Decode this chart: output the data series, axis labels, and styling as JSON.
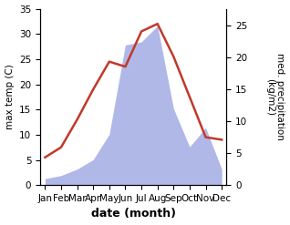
{
  "months": [
    "Jan",
    "Feb",
    "Mar",
    "Apr",
    "May",
    "Jun",
    "Jul",
    "Aug",
    "Sep",
    "Oct",
    "Nov",
    "Dec"
  ],
  "month_positions": [
    0,
    1,
    2,
    3,
    4,
    5,
    6,
    7,
    8,
    9,
    10,
    11
  ],
  "temperature": [
    5.5,
    7.5,
    13.0,
    19.0,
    24.5,
    23.5,
    30.5,
    32.0,
    25.5,
    17.5,
    9.5,
    9.0
  ],
  "precipitation": [
    1.0,
    1.5,
    2.5,
    4.0,
    8.0,
    22.0,
    22.5,
    25.0,
    12.0,
    6.0,
    9.0,
    2.5
  ],
  "temp_color": "#c0392b",
  "precip_color": "#b0b8e8",
  "ylim_temp": [
    0,
    35
  ],
  "ylim_precip": [
    0,
    27.7
  ],
  "ylabel_left": "max temp (C)",
  "ylabel_right": "med. precipitation\n(kg/m2)",
  "xlabel": "date (month)",
  "bg_color": "#ffffff",
  "axis_fontsize": 8,
  "tick_fontsize": 7.5,
  "xlabel_fontsize": 9
}
